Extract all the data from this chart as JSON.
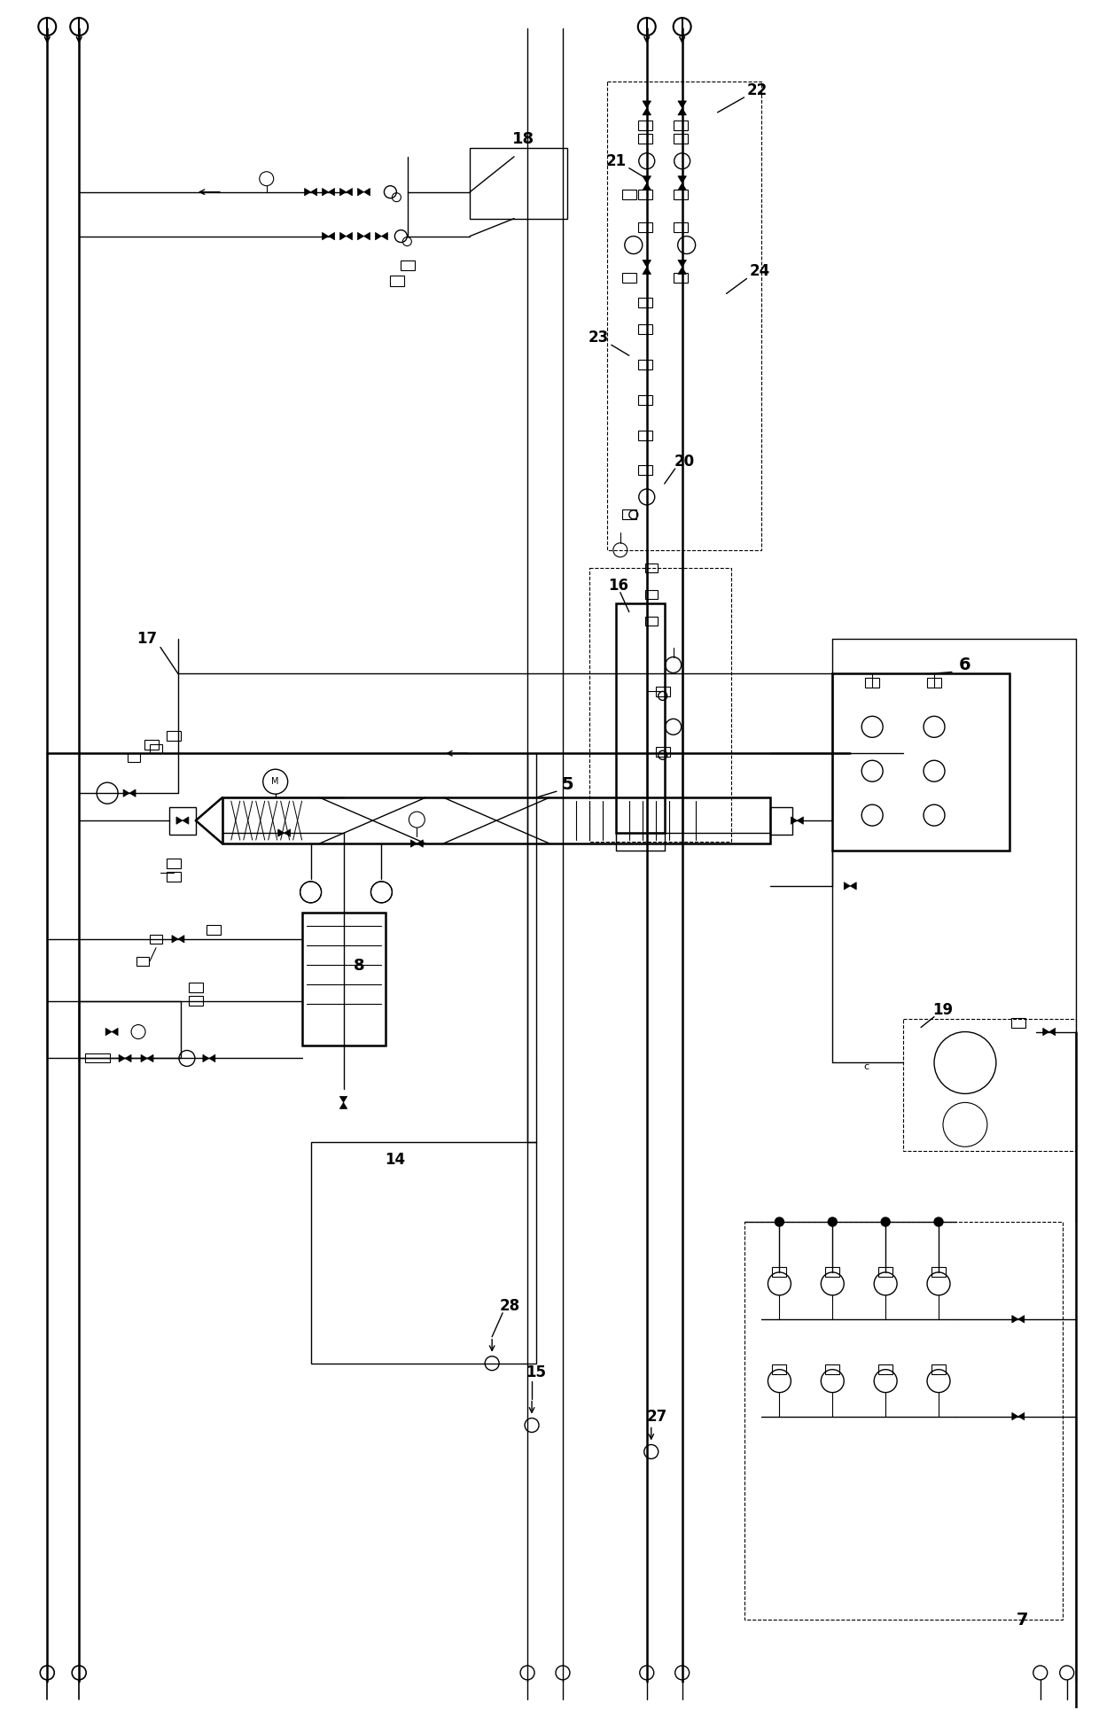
{
  "bg_color": "#ffffff",
  "line_color": "#000000",
  "figsize": [
    12.4,
    19.3
  ],
  "dpi": 100
}
